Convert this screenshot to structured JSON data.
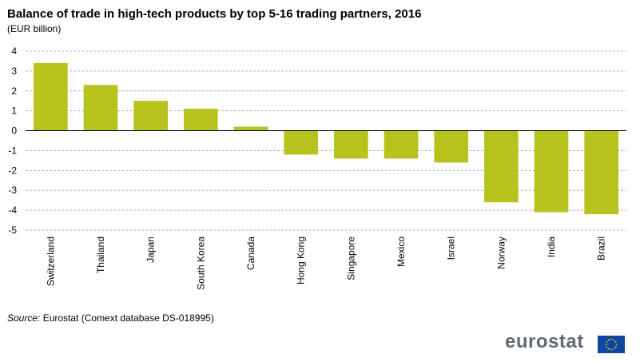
{
  "chart_data": {
    "type": "bar",
    "title": "Balance of trade in high-tech products by top 5-16 trading partners, 2016",
    "subtitle": "(EUR billion)",
    "categories": [
      "Switzerland",
      "Thailand",
      "Japan",
      "South Korea",
      "Canada",
      "Hong Kong",
      "Singapore",
      "Mexico",
      "Israel",
      "Norway",
      "India",
      "Brazil"
    ],
    "values": [
      3.4,
      2.3,
      1.5,
      1.1,
      0.2,
      -1.2,
      -1.4,
      -1.4,
      -1.6,
      -3.6,
      -4.1,
      -4.2
    ],
    "ylim": [
      -5,
      4
    ],
    "yticks": [
      4,
      3,
      2,
      1,
      0,
      -1,
      -2,
      -3,
      -4,
      -5
    ],
    "bar_color": "#b8c21c",
    "grid": true
  },
  "source": {
    "label": "Source:",
    "text": "Eurostat (Comext database DS-018995)"
  },
  "logo": {
    "text": "eurostat",
    "text_color": "#5e6a77",
    "flag_color": "#0e47a0",
    "star_color": "#ffdd00"
  }
}
